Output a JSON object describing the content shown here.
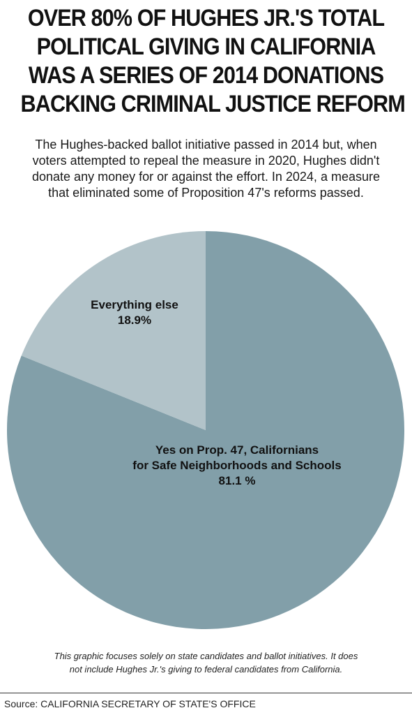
{
  "headline": [
    "OVER 80% OF HUGHES JR.'S TOTAL",
    "POLITICAL GIVING IN CALIFORNIA",
    "WAS A SERIES OF 2014 DONATIONS",
    "BACKING CRIMINAL JUSTICE REFORM"
  ],
  "subhead": [
    "The Hughes-backed ballot initiative passed in 2014 but, when",
    "voters attempted to repeal the measure in 2020, Hughes didn't",
    "donate any money for or against the effort. In 2024, a measure",
    "that eliminated some of Proposition 47's reforms passed."
  ],
  "note": [
    "This graphic focuses solely on state candidates and ballot initiatives. It does",
    "not include Hughes Jr.'s giving to federal candidates from California."
  ],
  "source": "Source: CALIFORNIA SECRETARY OF STATE'S OFFICE",
  "chart_data": {
    "type": "pie",
    "title": "",
    "slices": [
      {
        "label_lines": [
          "Yes on Prop. 47, Californians",
          "for Safe Neighborhoods and Schools"
        ],
        "value": 81.1,
        "value_label": "81.1 %",
        "color": "#829fa9"
      },
      {
        "label_lines": [
          "Everything else"
        ],
        "value": 18.9,
        "value_label": "18.9%",
        "color": "#b2c3c9"
      }
    ]
  }
}
